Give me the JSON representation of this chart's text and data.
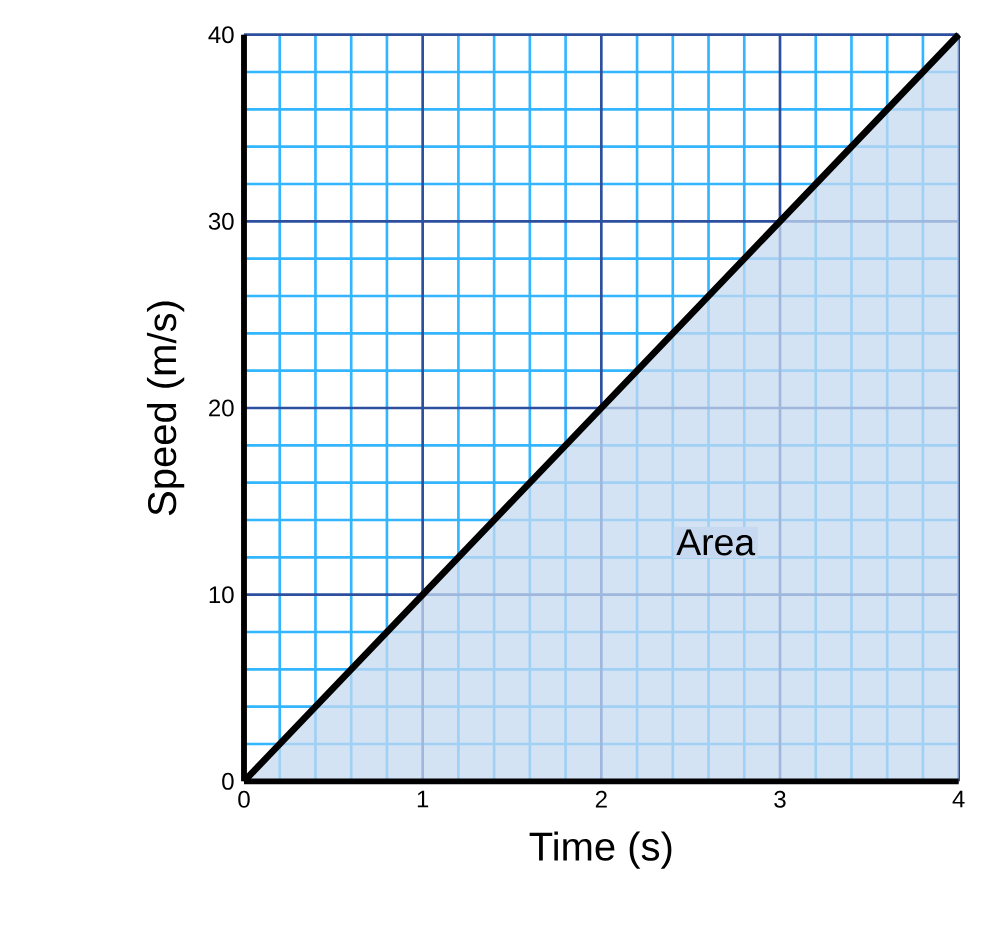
{
  "chart_data": {
    "type": "area",
    "xlabel": "Time (s)",
    "ylabel": "Speed  (m/s)",
    "x": [
      0,
      1,
      2,
      3,
      4
    ],
    "series": [
      {
        "color": "#c6d9f0",
        "values": [
          0,
          10,
          20,
          30,
          40
        ]
      }
    ],
    "xlim": [
      0,
      4
    ],
    "ylim": [
      0,
      40
    ],
    "xticks": [
      0,
      {
        "value": 0.2,
        "label": null
      },
      {
        "value": 0.4,
        "label": null
      },
      {
        "value": 0.6,
        "label": null
      },
      {
        "value": 0.8,
        "label": null
      },
      1,
      {
        "value": 1.2,
        "label": null
      },
      {
        "value": 1.4,
        "label": null
      },
      {
        "value": 1.6,
        "label": null
      },
      {
        "value": 1.8,
        "label": null
      },
      2,
      {
        "value": 2.2,
        "label": null
      },
      {
        "value": 2.4,
        "label": null
      },
      {
        "value": 2.6,
        "label": null
      },
      {
        "value": 2.8,
        "label": null
      },
      3,
      {
        "value": 3.2,
        "label": null
      },
      {
        "value": 3.4,
        "label": null
      },
      {
        "value": 3.6,
        "label": null
      },
      {
        "value": 3.8,
        "label": null
      },
      4
    ],
    "yticks": [
      0,
      {
        "value": 2,
        "label": null
      },
      {
        "value": 4,
        "label": null
      },
      {
        "value": 6,
        "label": null
      },
      {
        "value": 8,
        "label": null
      },
      10,
      {
        "value": 12,
        "label": null
      },
      {
        "value": 14,
        "label": null
      },
      {
        "value": 16,
        "label": null
      },
      {
        "value": 18,
        "label": null
      },
      20,
      {
        "value": 22,
        "label": null
      },
      {
        "value": 24,
        "label": null
      },
      {
        "value": 26,
        "label": null
      },
      {
        "value": 28,
        "label": null
      },
      30,
      {
        "value": 32,
        "label": null
      },
      {
        "value": 34,
        "label": null
      },
      {
        "value": 36,
        "label": null
      },
      {
        "value": 38,
        "label": null
      },
      40
    ],
    "grid": true,
    "marker": "none",
    "line_style": "solid",
    "annotations": [
      "Area"
    ]
  }
}
